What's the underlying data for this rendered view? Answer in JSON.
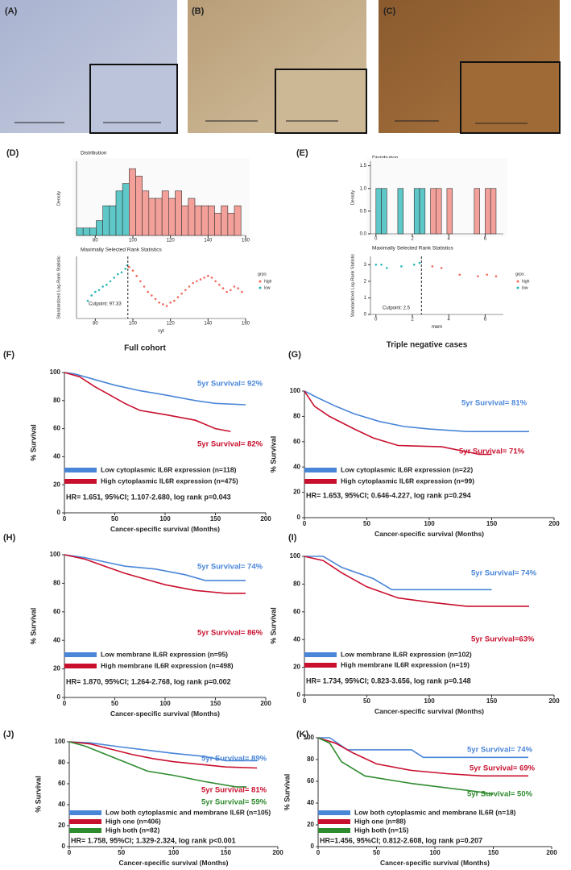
{
  "panels": [
    {
      "label": "(A)"
    },
    {
      "label": "(B)"
    },
    {
      "label": "(C)"
    }
  ],
  "chart_data": [
    {
      "type": "histogram",
      "panel": "(D)",
      "title": "Distribution",
      "ylabel": "Density",
      "xlim": [
        70,
        160
      ],
      "xticks": [
        80,
        100,
        120,
        140,
        160
      ],
      "ylim": [
        0,
        10
      ],
      "series": [
        {
          "color": "#5ec8c8",
          "bins": [
            70,
            73.5,
            77,
            80.5,
            84,
            87.5,
            91,
            94.5,
            98
          ],
          "values": [
            1,
            1,
            1,
            2,
            4,
            4,
            6,
            7
          ]
        },
        {
          "color": "#f4a09a",
          "bins": [
            98,
            101.5,
            105,
            108.5,
            112,
            115.5,
            119,
            122.5,
            126,
            129.5,
            133,
            136.5,
            140,
            143.5,
            147,
            150.5,
            154,
            157.5
          ],
          "values": [
            9,
            8,
            6,
            5,
            5,
            6,
            5,
            6,
            4,
            5,
            4,
            4,
            4,
            3,
            4,
            3,
            4
          ]
        }
      ]
    },
    {
      "type": "scatter",
      "title": "Maximally Selected Rank Statistics",
      "xlabel": "cyt",
      "ylabel": "Standardized Log-Rank Statistic",
      "xlim": [
        70,
        160
      ],
      "xticks": [
        80,
        100,
        120,
        140,
        160
      ],
      "ylim": [
        0,
        3.5
      ],
      "cutpoint": 97.33,
      "annotation": "Cutpoint: 97.33",
      "legend_title": "grps",
      "series": [
        {
          "name": "high",
          "color": "#f06a5e",
          "x": [
            98,
            100,
            102,
            104,
            106,
            108,
            110,
            112,
            114,
            116,
            118,
            120,
            122,
            124,
            126,
            128,
            130,
            132,
            134,
            136,
            138,
            140,
            142,
            144,
            146,
            148,
            150,
            152,
            154,
            156,
            158
          ],
          "values": [
            2.9,
            2.7,
            2.4,
            2.1,
            1.8,
            1.5,
            1.3,
            1.1,
            0.9,
            0.8,
            0.7,
            0.9,
            1.0,
            1.2,
            1.4,
            1.6,
            1.8,
            2.0,
            2.1,
            2.2,
            2.3,
            2.4,
            2.3,
            2.1,
            1.9,
            1.7,
            1.5,
            1.6,
            1.8,
            1.7,
            1.5
          ]
        },
        {
          "name": "low",
          "color": "#2ab7b7",
          "x": [
            76,
            78,
            80,
            82,
            84,
            86,
            88,
            90,
            92,
            94,
            96,
            97
          ],
          "values": [
            1.0,
            1.3,
            1.5,
            1.6,
            1.8,
            1.9,
            2.1,
            2.3,
            2.5,
            2.6,
            2.8,
            3.0
          ]
        }
      ]
    },
    {
      "type": "histogram",
      "panel": "(E)",
      "title": "Distribution",
      "ylabel": "Density",
      "xlim": [
        -0.3,
        7
      ],
      "xticks": [
        0,
        2,
        4,
        6
      ],
      "ylim": [
        0,
        1.6
      ],
      "yticks": [
        {
          "value": 0,
          "label": "0.0"
        },
        {
          "value": 0.5,
          "label": "0.5"
        },
        {
          "value": 1,
          "label": "1.0"
        },
        {
          "value": 1.5,
          "label": "1.5"
        }
      ],
      "series": [
        {
          "color": "#5ec8c8",
          "bins": [
            0,
            0.3,
            0.6,
            0.9,
            1.2,
            1.5,
            1.8,
            2.1,
            2.4,
            2.7
          ],
          "values": [
            1,
            1,
            0,
            0,
            1,
            0,
            0,
            1,
            1
          ]
        },
        {
          "color": "#f4a09a",
          "bins": [
            2.7,
            3.0,
            3.3,
            3.6,
            3.9,
            4.2,
            4.5,
            4.8,
            5.1,
            5.4,
            5.7,
            6.0,
            6.3,
            6.6
          ],
          "values": [
            0,
            1,
            1,
            0,
            1,
            0,
            0,
            0,
            0,
            1,
            0,
            1,
            1
          ]
        }
      ]
    },
    {
      "type": "scatter",
      "title": "Maximally Selected Rank Statistics",
      "xlabel": "mem",
      "ylabel": "Standardized Log-Rank Statistic",
      "xlim": [
        -0.3,
        7
      ],
      "xticks": [
        0,
        2,
        4,
        6
      ],
      "ylim": [
        0,
        3.5
      ],
      "yticks": [
        0,
        1,
        2,
        3
      ],
      "cutpoint": 2.5,
      "annotation": "Cutpoint: 2.5",
      "legend_title": "grps",
      "series": [
        {
          "name": "high",
          "color": "#f06a5e",
          "x": [
            3.1,
            3.6,
            4.6,
            5.6,
            6.1,
            6.6
          ],
          "values": [
            2.9,
            2.8,
            2.4,
            2.3,
            2.4,
            2.3
          ]
        },
        {
          "name": "low",
          "color": "#2ab7b7",
          "x": [
            0,
            0.3,
            0.6,
            1.4,
            2.1,
            2.4
          ],
          "values": [
            3.0,
            3.0,
            2.8,
            2.9,
            3.0,
            3.1
          ]
        }
      ]
    },
    {
      "type": "line",
      "panel": "(F)",
      "title": "Full cohort",
      "xlabel": "Cancer-specific survival (Months)",
      "ylabel": "% Survival",
      "xlim": [
        0,
        200
      ],
      "xticks": [
        0,
        50,
        100,
        150,
        200
      ],
      "ylim": [
        0,
        100
      ],
      "yticks": [
        0,
        20,
        40,
        60,
        80,
        100
      ],
      "series": [
        {
          "name": "Low cytoplasmic IL6R expression (n=118)",
          "color": "#4a86d8",
          "x": [
            0,
            10,
            30,
            50,
            75,
            100,
            130,
            150,
            180
          ],
          "values": [
            100,
            99,
            95,
            91,
            87,
            84,
            80,
            78,
            77
          ]
        },
        {
          "name": "High cytoplasmic IL6R expression (n=475)",
          "color": "#c8102e",
          "x": [
            0,
            15,
            30,
            50,
            60,
            75,
            100,
            130,
            150,
            165
          ],
          "values": [
            100,
            97,
            90,
            82,
            78,
            73,
            70,
            66,
            60,
            58
          ]
        }
      ],
      "annotations": [
        {
          "text": "5yr Survival= 92%",
          "color": "#4a86d8"
        },
        {
          "text": "5yr Survival= 82%",
          "color": "#c8102e"
        }
      ],
      "stats": "HR= 1.651, 95%CI; 1.107-2.680, log rank p=0.043"
    },
    {
      "type": "line",
      "panel": "(G)",
      "title": "Triple negative cases",
      "xlabel": "Cancer-specific survival (Months)",
      "ylabel": "% Survival",
      "xlim": [
        0,
        200
      ],
      "xticks": [
        0,
        50,
        100,
        150,
        200
      ],
      "ylim": [
        0,
        100
      ],
      "yticks": [
        0,
        20,
        40,
        60,
        80,
        100
      ],
      "series": [
        {
          "name": "Low cytoplasmic IL6R expression (n=22)",
          "color": "#4a86d8",
          "x": [
            0,
            10,
            25,
            40,
            60,
            80,
            100,
            130,
            180
          ],
          "values": [
            100,
            95,
            88,
            82,
            76,
            72,
            70,
            68,
            68
          ]
        },
        {
          "name": "High cytoplasmic IL6R expression (n=99)",
          "color": "#c8102e",
          "x": [
            0,
            8,
            20,
            40,
            55,
            75,
            110,
            140,
            150
          ],
          "values": [
            100,
            88,
            80,
            70,
            63,
            57,
            56,
            50,
            50
          ]
        }
      ],
      "annotations": [
        {
          "text": "5yr Survival= 81%",
          "color": "#4a86d8"
        },
        {
          "text": "5yr Survival= 71%",
          "color": "#c8102e"
        }
      ],
      "stats": "HR= 1.653, 95%CI; 0.646-4.227, log rank p=0.294"
    },
    {
      "type": "line",
      "panel": "(H)",
      "xlabel": "Cancer-specific survival (Months)",
      "ylabel": "% Survival",
      "xlim": [
        0,
        200
      ],
      "xticks": [
        0,
        50,
        100,
        150,
        200
      ],
      "ylim": [
        0,
        100
      ],
      "yticks": [
        0,
        20,
        40,
        60,
        80,
        100
      ],
      "series": [
        {
          "name": "Low membrane IL6R expression (n=95)",
          "color": "#4a86d8",
          "x": [
            0,
            20,
            40,
            60,
            90,
            120,
            140,
            180
          ],
          "values": [
            100,
            98,
            95,
            92,
            90,
            86,
            82,
            82
          ]
        },
        {
          "name": "High membrane IL6R expression (n=498)",
          "color": "#c8102e",
          "x": [
            0,
            20,
            40,
            60,
            80,
            100,
            130,
            160,
            180
          ],
          "values": [
            100,
            97,
            92,
            87,
            83,
            79,
            75,
            73,
            73
          ]
        }
      ],
      "annotations": [
        {
          "text": "5yr Survival= 74%",
          "color": "#4a86d8"
        },
        {
          "text": "5yr Survival= 86%",
          "color": "#c8102e"
        }
      ],
      "stats": "HR= 1.870, 95%CI; 1.264-2.768, log rank p=0.002"
    },
    {
      "type": "line",
      "panel": "(I)",
      "xlabel": "Cancer-specific survival (Months)",
      "ylabel": "% Survival",
      "xlim": [
        0,
        200
      ],
      "xticks": [
        0,
        50,
        100,
        150,
        200
      ],
      "ylim": [
        0,
        100
      ],
      "yticks": [
        0,
        20,
        40,
        60,
        80,
        100
      ],
      "series": [
        {
          "name": "Low membrane IL6R expression (n=102)",
          "color": "#4a86d8",
          "x": [
            0,
            15,
            30,
            55,
            70,
            150
          ],
          "values": [
            100,
            100,
            92,
            84,
            76,
            76
          ]
        },
        {
          "name": "High membrane IL6R expression (n=19)",
          "color": "#c8102e",
          "x": [
            0,
            15,
            30,
            50,
            75,
            100,
            130,
            180
          ],
          "values": [
            100,
            97,
            88,
            78,
            70,
            67,
            64,
            64
          ]
        }
      ],
      "annotations": [
        {
          "text": "5yr Survival= 74%",
          "color": "#4a86d8"
        },
        {
          "text": "5yr Survival=63%",
          "color": "#c8102e"
        }
      ],
      "stats": "HR= 1.734, 95%CI; 0.823-3.656, log rank p=0.148"
    },
    {
      "type": "line",
      "panel": "(J)",
      "xlabel": "Cancer-specific survival (Months)",
      "ylabel": "% Survival",
      "xlim": [
        0,
        200
      ],
      "xticks": [
        0,
        50,
        100,
        150,
        200
      ],
      "ylim": [
        0,
        100
      ],
      "yticks": [
        0,
        20,
        40,
        60,
        80,
        100
      ],
      "series": [
        {
          "name": "Low both cytoplasmic and membrane IL6R (n=105)",
          "color": "#4a86d8",
          "x": [
            0,
            20,
            50,
            75,
            100,
            130,
            150,
            180
          ],
          "values": [
            100,
            99,
            95,
            92,
            89,
            86,
            82,
            82
          ]
        },
        {
          "name": "High one (n=406)",
          "color": "#c8102e",
          "x": [
            0,
            20,
            40,
            60,
            80,
            100,
            130,
            150,
            180
          ],
          "values": [
            100,
            98,
            93,
            88,
            84,
            81,
            78,
            76,
            75
          ]
        },
        {
          "name": "High both (n=82)",
          "color": "#2e8b2e",
          "x": [
            0,
            15,
            30,
            50,
            75,
            100,
            130,
            160,
            170
          ],
          "values": [
            100,
            96,
            90,
            82,
            72,
            68,
            62,
            57,
            57
          ]
        }
      ],
      "annotations": [
        {
          "text": "5yr Survival= 89%",
          "color": "#4a86d8"
        },
        {
          "text": "5yr Survival= 81%",
          "color": "#c8102e"
        },
        {
          "text": "5yr Survival= 59%",
          "color": "#2e8b2e"
        }
      ],
      "stats": "HR= 1.758, 95%CI; 1.329-2.324, log rank p<0.001"
    },
    {
      "type": "line",
      "panel": "(K)",
      "xlabel": "Cancer-specific survival (Months)",
      "ylabel": "% Survival",
      "xlim": [
        0,
        200
      ],
      "xticks": [
        0,
        50,
        100,
        150,
        200
      ],
      "ylim": [
        0,
        100
      ],
      "yticks": [
        0,
        20,
        40,
        60,
        80,
        100
      ],
      "series": [
        {
          "name": "Low both cytoplasmic and membrane IL6R (n=18)",
          "color": "#4a86d8",
          "x": [
            0,
            10,
            25,
            80,
            90,
            180
          ],
          "values": [
            100,
            100,
            89,
            89,
            82,
            82
          ]
        },
        {
          "name": "High one (n=88)",
          "color": "#c8102e",
          "x": [
            0,
            15,
            30,
            50,
            80,
            110,
            140,
            180
          ],
          "values": [
            100,
            95,
            86,
            76,
            70,
            67,
            65,
            65
          ]
        },
        {
          "name": "High both (n=15)",
          "color": "#2e8b2e",
          "x": [
            0,
            10,
            20,
            40,
            80,
            140,
            150
          ],
          "values": [
            100,
            95,
            78,
            65,
            58,
            50,
            48
          ]
        }
      ],
      "annotations": [
        {
          "text": "5yr Survival= 74%",
          "color": "#4a86d8"
        },
        {
          "text": "5yr Survival= 69%",
          "color": "#c8102e"
        },
        {
          "text": "5yr Survival= 50%",
          "color": "#2e8b2e"
        }
      ],
      "stats": "HR=1.456, 95%CI; 0.812-2.608, log rank p=0.207"
    }
  ]
}
